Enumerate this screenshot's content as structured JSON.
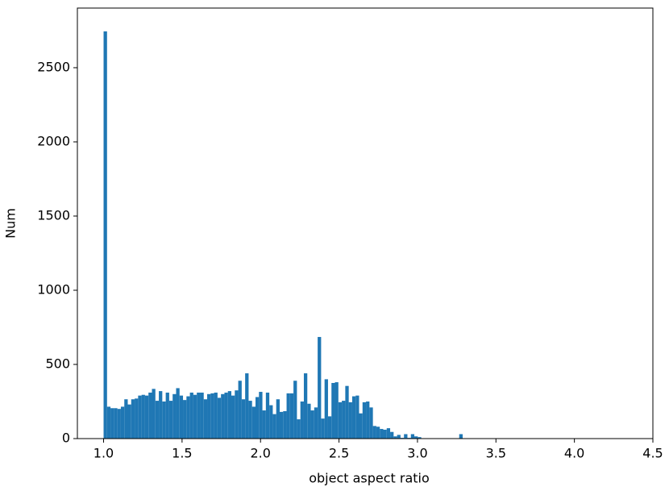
{
  "chart_data": {
    "type": "histogram",
    "xlabel": "object aspect ratio",
    "ylabel": "Num",
    "color": "#1f77b4",
    "bins": [
      1,
      1.022,
      1.044,
      1.066,
      1.088,
      1.11,
      1.132,
      1.154,
      1.176,
      1.198,
      1.22,
      1.242,
      1.264,
      1.286,
      1.308,
      1.33,
      1.352,
      1.374,
      1.396,
      1.418,
      1.44,
      1.462,
      1.484,
      1.506,
      1.528,
      1.55,
      1.572,
      1.594,
      1.616,
      1.638,
      1.66,
      1.682,
      1.704,
      1.726,
      1.748,
      1.77,
      1.792,
      1.814,
      1.836,
      1.858,
      1.88,
      1.902,
      1.924,
      1.946,
      1.968,
      1.99,
      2.012,
      2.034,
      2.056,
      2.078,
      2.1,
      2.122,
      2.144,
      2.166,
      2.188,
      2.21,
      2.232,
      2.254,
      2.276,
      2.298,
      2.32,
      2.342,
      2.364,
      2.386,
      2.408,
      2.43,
      2.452,
      2.474,
      2.496,
      2.518,
      2.54,
      2.562,
      2.584,
      2.606,
      2.628,
      2.65,
      2.672,
      2.694,
      2.716,
      2.738,
      2.76,
      2.782,
      2.804,
      2.826,
      2.848,
      2.87,
      2.892,
      2.914,
      2.936,
      2.958,
      2.98,
      3.002,
      3.024,
      3.046,
      3.068,
      3.09,
      3.112,
      3.134,
      3.156,
      3.178,
      3.2,
      3.222,
      3.244,
      3.266,
      3.288
    ],
    "values": [
      2745,
      215,
      205,
      205,
      200,
      215,
      265,
      230,
      265,
      270,
      290,
      295,
      290,
      310,
      335,
      255,
      320,
      250,
      310,
      255,
      300,
      340,
      290,
      260,
      285,
      310,
      295,
      310,
      310,
      265,
      300,
      305,
      310,
      275,
      300,
      310,
      320,
      290,
      325,
      390,
      265,
      440,
      255,
      215,
      280,
      315,
      190,
      310,
      225,
      165,
      265,
      180,
      185,
      305,
      305,
      390,
      130,
      250,
      440,
      235,
      190,
      210,
      685,
      135,
      400,
      150,
      375,
      380,
      245,
      255,
      355,
      245,
      285,
      290,
      170,
      245,
      250,
      210,
      85,
      80,
      65,
      60,
      70,
      45,
      15,
      25,
      5,
      30,
      5,
      30,
      15,
      10,
      0,
      0,
      0,
      0,
      0,
      0,
      0,
      0,
      0,
      0,
      0,
      30
    ],
    "xlim": [
      0.833,
      4.5
    ],
    "ylim": [
      0,
      2902
    ],
    "xticks": [
      {
        "value": 1,
        "label": "1.0"
      },
      {
        "value": 1.5,
        "label": "1.5"
      },
      {
        "value": 2,
        "label": "2.0"
      },
      {
        "value": 2.5,
        "label": "2.5"
      },
      {
        "value": 3,
        "label": "3.0"
      },
      {
        "value": 3.5,
        "label": "3.5"
      },
      {
        "value": 4,
        "label": "4.0"
      },
      {
        "value": 4.5,
        "label": "4.5"
      }
    ],
    "yticks": [
      0,
      500,
      1000,
      1500,
      2000,
      2500
    ]
  }
}
